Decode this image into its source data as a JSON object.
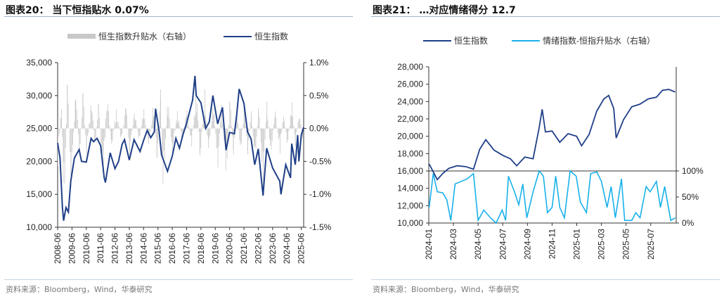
{
  "left": {
    "title": "图表20：  当下恒指贴水 0.07%",
    "source": "资料来源：Bloomberg，Wind，华泰研究",
    "chart_data": {
      "type": "line+bar",
      "legend_position": "top",
      "legend": [
        "恒生指数升贴水（右轴）",
        "恒生指数"
      ],
      "x_ticks": [
        "2008-06",
        "2009-06",
        "2010-06",
        "2011-06",
        "2012-06",
        "2013-06",
        "2014-06",
        "2015-06",
        "2016-06",
        "2017-06",
        "2018-06",
        "2019-06",
        "2020-06",
        "2021-06",
        "2022-06",
        "2023-06",
        "2024-06",
        "2025-06"
      ],
      "y_left": {
        "min": 10000,
        "max": 35000,
        "ticks": [
          "10,000",
          "15,000",
          "20,000",
          "25,000",
          "30,000",
          "35,000"
        ]
      },
      "y_right": {
        "min": -1.5,
        "max": 1.0,
        "ticks": [
          "-1.5%",
          "-1.0%",
          "-0.5%",
          "0.0%",
          "0.5%",
          "1.0%"
        ]
      },
      "colors": {
        "index": "#1f3f87",
        "basis": "#c8c8c8"
      },
      "index_series": [
        [
          "2008-06",
          22800
        ],
        [
          "2008-08",
          20500
        ],
        [
          "2008-10",
          13000
        ],
        [
          "2008-11",
          11000
        ],
        [
          "2009-01",
          13000
        ],
        [
          "2009-03",
          12300
        ],
        [
          "2009-05",
          17000
        ],
        [
          "2009-08",
          20500
        ],
        [
          "2009-12",
          21800
        ],
        [
          "2010-02",
          20000
        ],
        [
          "2010-06",
          19900
        ],
        [
          "2010-10",
          23500
        ],
        [
          "2010-12",
          23000
        ],
        [
          "2011-03",
          23500
        ],
        [
          "2011-06",
          22400
        ],
        [
          "2011-09",
          17500
        ],
        [
          "2011-10",
          16800
        ],
        [
          "2012-02",
          21300
        ],
        [
          "2012-06",
          18900
        ],
        [
          "2012-09",
          20000
        ],
        [
          "2012-12",
          22600
        ],
        [
          "2013-02",
          23300
        ],
        [
          "2013-06",
          20200
        ],
        [
          "2013-10",
          23300
        ],
        [
          "2014-03",
          21500
        ],
        [
          "2014-06",
          23200
        ],
        [
          "2014-09",
          24700
        ],
        [
          "2014-12",
          23600
        ],
        [
          "2015-03",
          24500
        ],
        [
          "2015-04",
          28000
        ],
        [
          "2015-07",
          24500
        ],
        [
          "2015-09",
          21000
        ],
        [
          "2016-02",
          18500
        ],
        [
          "2016-06",
          20800
        ],
        [
          "2016-09",
          23500
        ],
        [
          "2016-12",
          22000
        ],
        [
          "2017-03",
          24100
        ],
        [
          "2017-06",
          25800
        ],
        [
          "2017-11",
          29300
        ],
        [
          "2018-01",
          33000
        ],
        [
          "2018-02",
          30000
        ],
        [
          "2018-06",
          28900
        ],
        [
          "2018-10",
          25000
        ],
        [
          "2019-01",
          26000
        ],
        [
          "2019-04",
          30000
        ],
        [
          "2019-08",
          25700
        ],
        [
          "2019-12",
          28200
        ],
        [
          "2020-03",
          21700
        ],
        [
          "2020-06",
          24400
        ],
        [
          "2020-10",
          24200
        ],
        [
          "2020-12",
          27200
        ],
        [
          "2021-02",
          31000
        ],
        [
          "2021-06",
          28800
        ],
        [
          "2021-09",
          24500
        ],
        [
          "2021-12",
          23400
        ],
        [
          "2022-03",
          19500
        ],
        [
          "2022-06",
          21900
        ],
        [
          "2022-10",
          14800
        ],
        [
          "2023-01",
          22000
        ],
        [
          "2023-06",
          19000
        ],
        [
          "2023-09",
          18000
        ],
        [
          "2023-12",
          17000
        ],
        [
          "2024-01",
          15000
        ],
        [
          "2024-05",
          19500
        ],
        [
          "2024-09",
          17500
        ],
        [
          "2024-10",
          22700
        ],
        [
          "2025-01",
          19500
        ],
        [
          "2025-03",
          24000
        ],
        [
          "2025-04",
          20000
        ],
        [
          "2025-06",
          24000
        ],
        [
          "2025-08",
          25200
        ]
      ],
      "basis_series": [
        [
          "2008-06",
          -0.6
        ],
        [
          "2008-09",
          0.5
        ],
        [
          "2008-11",
          -1.4
        ],
        [
          "2009-02",
          0.8
        ],
        [
          "2009-05",
          -0.9
        ],
        [
          "2009-09",
          0.7
        ],
        [
          "2009-12",
          -0.5
        ],
        [
          "2010-03",
          0.6
        ],
        [
          "2010-06",
          -0.4
        ],
        [
          "2010-10",
          0.5
        ],
        [
          "2011-01",
          -0.3
        ],
        [
          "2011-04",
          0.4
        ],
        [
          "2011-08",
          -0.8
        ],
        [
          "2011-11",
          0.6
        ],
        [
          "2012-03",
          -0.3
        ],
        [
          "2012-07",
          0.3
        ],
        [
          "2012-11",
          -0.2
        ],
        [
          "2013-03",
          0.4
        ],
        [
          "2013-06",
          -0.4
        ],
        [
          "2013-10",
          0.3
        ],
        [
          "2014-02",
          -0.2
        ],
        [
          "2014-06",
          0.3
        ],
        [
          "2014-10",
          -0.3
        ],
        [
          "2015-02",
          0.4
        ],
        [
          "2015-05",
          -0.5
        ],
        [
          "2015-08",
          0.6
        ],
        [
          "2015-10",
          -1.0
        ],
        [
          "2016-02",
          0.5
        ],
        [
          "2016-06",
          -0.4
        ],
        [
          "2016-10",
          0.3
        ],
        [
          "2017-02",
          -0.2
        ],
        [
          "2017-06",
          0.3
        ],
        [
          "2017-10",
          -0.3
        ],
        [
          "2018-02",
          0.7
        ],
        [
          "2018-05",
          -0.5
        ],
        [
          "2018-09",
          0.6
        ],
        [
          "2018-12",
          -0.4
        ],
        [
          "2019-04",
          0.4
        ],
        [
          "2019-08",
          -0.6
        ],
        [
          "2019-11",
          0.4
        ],
        [
          "2020-03",
          -0.8
        ],
        [
          "2020-06",
          0.5
        ],
        [
          "2020-09",
          -0.4
        ],
        [
          "2020-12",
          0.4
        ],
        [
          "2021-03",
          -0.5
        ],
        [
          "2021-06",
          0.5
        ],
        [
          "2021-09",
          -0.4
        ],
        [
          "2021-12",
          0.3
        ],
        [
          "2022-03",
          -0.6
        ],
        [
          "2022-06",
          0.4
        ],
        [
          "2022-10",
          -0.9
        ],
        [
          "2023-01",
          0.5
        ],
        [
          "2023-04",
          -0.5
        ],
        [
          "2023-08",
          0.3
        ],
        [
          "2023-12",
          -0.4
        ],
        [
          "2024-03",
          0.3
        ],
        [
          "2024-06",
          -0.3
        ],
        [
          "2024-10",
          0.4
        ],
        [
          "2025-01",
          -0.3
        ],
        [
          "2025-04",
          0.3
        ],
        [
          "2025-07",
          -0.2
        ],
        [
          "2025-08",
          0.07
        ]
      ]
    }
  },
  "right": {
    "title": "图表21：  …对应情绪得分 12.7",
    "source": "资料来源：Bloomberg，Wind，华泰研究",
    "chart_data": {
      "type": "line",
      "legend_position": "top",
      "legend": [
        "恒生指数",
        "情绪指数-恒指升贴水（右轴）"
      ],
      "x_ticks": [
        "2024-01",
        "2024-03",
        "2024-05",
        "2024-07",
        "2024-09",
        "2024-11",
        "2025-01",
        "2025-03",
        "2025-05",
        "2025-07"
      ],
      "y_left": {
        "min": 10000,
        "max": 28000,
        "ticks": [
          "10,000",
          "12,000",
          "14,000",
          "16,000",
          "18,000",
          "20,000",
          "22,000",
          "24,000",
          "26,000",
          "28,000"
        ]
      },
      "y_right": {
        "min": 0,
        "max": 100,
        "ticks": [
          "0%",
          "50%",
          "100%"
        ]
      },
      "colors": {
        "index": "#1f3f87",
        "sentiment": "#18b0ea"
      },
      "index_series": [
        [
          "2024-01-02",
          16800
        ],
        [
          "2024-01-22",
          15000
        ],
        [
          "2024-02-05",
          15700
        ],
        [
          "2024-02-20",
          16300
        ],
        [
          "2024-03-10",
          16600
        ],
        [
          "2024-04-01",
          16500
        ],
        [
          "2024-04-20",
          16200
        ],
        [
          "2024-05-05",
          18500
        ],
        [
          "2024-05-20",
          19600
        ],
        [
          "2024-06-10",
          18400
        ],
        [
          "2024-07-01",
          17800
        ],
        [
          "2024-07-20",
          17400
        ],
        [
          "2024-08-05",
          16600
        ],
        [
          "2024-08-25",
          17600
        ],
        [
          "2024-09-15",
          17400
        ],
        [
          "2024-09-30",
          21000
        ],
        [
          "2024-10-07",
          23100
        ],
        [
          "2024-10-15",
          20500
        ],
        [
          "2024-11-01",
          20600
        ],
        [
          "2024-11-20",
          19300
        ],
        [
          "2024-12-10",
          20300
        ],
        [
          "2024-12-31",
          20000
        ],
        [
          "2025-01-13",
          18900
        ],
        [
          "2025-02-01",
          20200
        ],
        [
          "2025-02-20",
          22900
        ],
        [
          "2025-03-07",
          24300
        ],
        [
          "2025-03-19",
          24700
        ],
        [
          "2025-04-01",
          23200
        ],
        [
          "2025-04-07",
          19800
        ],
        [
          "2025-04-25",
          21900
        ],
        [
          "2025-05-15",
          23400
        ],
        [
          "2025-06-05",
          23700
        ],
        [
          "2025-06-25",
          24300
        ],
        [
          "2025-07-15",
          24500
        ],
        [
          "2025-07-30",
          25300
        ],
        [
          "2025-08-15",
          25400
        ],
        [
          "2025-08-31",
          25100
        ]
      ],
      "sentiment_series": [
        [
          "2024-01-02",
          30
        ],
        [
          "2024-01-12",
          95
        ],
        [
          "2024-01-22",
          60
        ],
        [
          "2024-02-05",
          58
        ],
        [
          "2024-02-15",
          45
        ],
        [
          "2024-02-25",
          5
        ],
        [
          "2024-03-05",
          75
        ],
        [
          "2024-03-20",
          80
        ],
        [
          "2024-04-05",
          85
        ],
        [
          "2024-04-20",
          95
        ],
        [
          "2024-05-01",
          5
        ],
        [
          "2024-05-15",
          25
        ],
        [
          "2024-06-01",
          10
        ],
        [
          "2024-06-15",
          0
        ],
        [
          "2024-06-30",
          25
        ],
        [
          "2024-07-08",
          5
        ],
        [
          "2024-07-15",
          90
        ],
        [
          "2024-07-30",
          60
        ],
        [
          "2024-08-10",
          35
        ],
        [
          "2024-08-20",
          75
        ],
        [
          "2024-08-30",
          10
        ],
        [
          "2024-09-15",
          60
        ],
        [
          "2024-09-30",
          100
        ],
        [
          "2024-10-10",
          90
        ],
        [
          "2024-10-20",
          20
        ],
        [
          "2024-11-01",
          30
        ],
        [
          "2024-11-10",
          90
        ],
        [
          "2024-11-20",
          30
        ],
        [
          "2024-12-01",
          10
        ],
        [
          "2024-12-15",
          100
        ],
        [
          "2024-12-30",
          90
        ],
        [
          "2025-01-10",
          40
        ],
        [
          "2025-01-25",
          20
        ],
        [
          "2025-02-05",
          95
        ],
        [
          "2025-02-20",
          98
        ],
        [
          "2025-03-01",
          80
        ],
        [
          "2025-03-15",
          30
        ],
        [
          "2025-03-25",
          70
        ],
        [
          "2025-04-05",
          10
        ],
        [
          "2025-04-20",
          85
        ],
        [
          "2025-04-28",
          5
        ],
        [
          "2025-05-15",
          5
        ],
        [
          "2025-05-25",
          20
        ],
        [
          "2025-06-05",
          10
        ],
        [
          "2025-06-20",
          70
        ],
        [
          "2025-06-30",
          60
        ],
        [
          "2025-07-15",
          80
        ],
        [
          "2025-07-25",
          30
        ],
        [
          "2025-08-05",
          70
        ],
        [
          "2025-08-20",
          5
        ],
        [
          "2025-08-31",
          10
        ]
      ]
    }
  }
}
